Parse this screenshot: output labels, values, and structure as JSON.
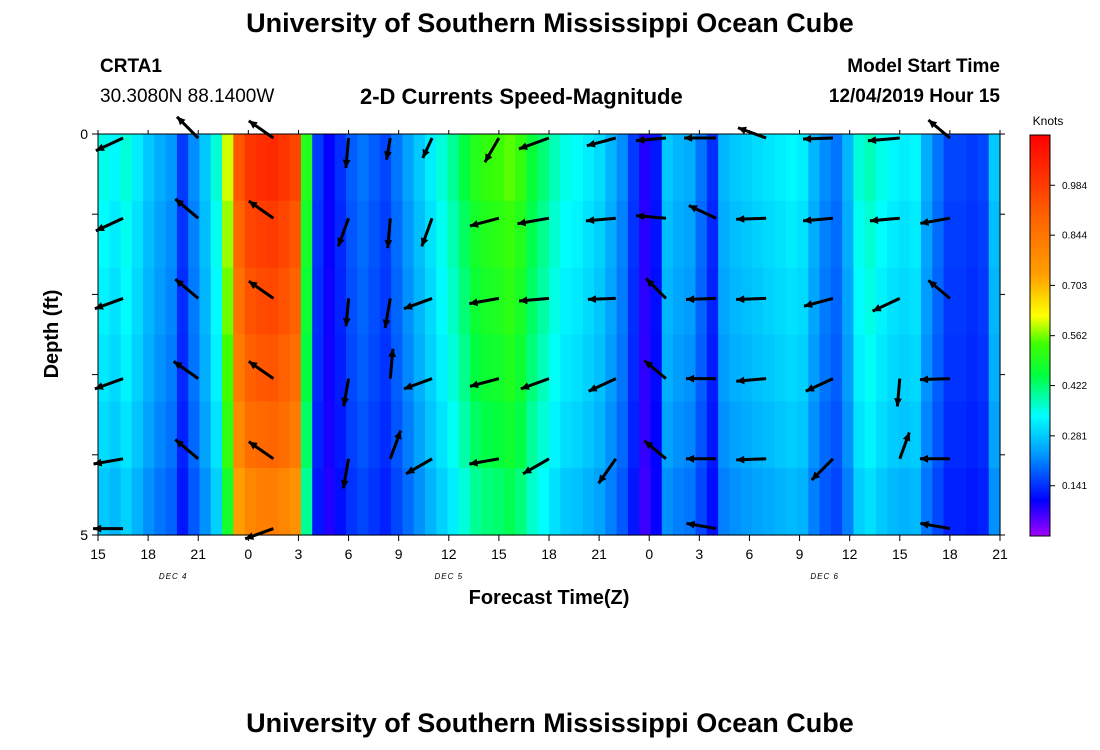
{
  "header": {
    "title": "University of Southern Mississippi Ocean Cube",
    "station": "CRTA1",
    "coords": "30.3080N 88.1400W",
    "subtitle": "2-D Currents Speed-Magnitude",
    "model_start_label": "Model Start Time",
    "model_start_value": "12/04/2019 Hour 15"
  },
  "footer": {
    "title": "University of Southern Mississippi Ocean Cube"
  },
  "colorbar": {
    "units": "Knots",
    "ticks": [
      "0.984",
      "0.844",
      "0.703",
      "0.562",
      "0.422",
      "0.281",
      "0.141"
    ]
  },
  "chart_data": {
    "type": "heatmap",
    "title": "2-D Currents Speed-Magnitude",
    "xlabel": "Forecast Time(Z)",
    "ylabel": "Depth (ft)",
    "x_tick_labels": [
      "15",
      "18",
      "21",
      "0",
      "3",
      "6",
      "9",
      "12",
      "15",
      "18",
      "21",
      "0",
      "3",
      "6",
      "9",
      "12",
      "15",
      "18",
      "21"
    ],
    "date_labels": [
      {
        "text": "DEC 4",
        "at_hour_offset": 4.5
      },
      {
        "text": "DEC 5",
        "at_hour_offset": 21
      },
      {
        "text": "DEC 6",
        "at_hour_offset": 43.5
      }
    ],
    "y_tick_labels": [
      "0",
      "5"
    ],
    "ylim": [
      0,
      5
    ],
    "x_range_hours": [
      0,
      54
    ],
    "value_range_knots": [
      0,
      1.125
    ],
    "column_speeds_knots": [
      0.35,
      0.33,
      0.36,
      0.32,
      0.28,
      0.25,
      0.23,
      0.15,
      0.22,
      0.28,
      0.36,
      0.6,
      0.92,
      1.0,
      1.02,
      1.03,
      1.0,
      0.96,
      0.5,
      0.15,
      0.1,
      0.14,
      0.18,
      0.2,
      0.18,
      0.16,
      0.2,
      0.24,
      0.28,
      0.32,
      0.36,
      0.4,
      0.45,
      0.5,
      0.52,
      0.53,
      0.55,
      0.52,
      0.46,
      0.42,
      0.38,
      0.35,
      0.34,
      0.32,
      0.3,
      0.26,
      0.22,
      0.15,
      0.08,
      0.12,
      0.28,
      0.26,
      0.25,
      0.2,
      0.14,
      0.26,
      0.28,
      0.29,
      0.3,
      0.31,
      0.32,
      0.33,
      0.32,
      0.26,
      0.22,
      0.2,
      0.26,
      0.36,
      0.38,
      0.35,
      0.33,
      0.32,
      0.33,
      0.25,
      0.2,
      0.16,
      0.16,
      0.15,
      0.16,
      0.28
    ],
    "depth_row_factors": [
      1.0,
      0.96,
      0.93,
      0.9,
      0.86,
      0.8
    ],
    "vectors": {
      "x_hours": [
        1.5,
        6,
        10.5,
        15,
        17.5,
        20,
        24,
        27,
        31,
        34,
        37,
        40,
        44,
        48,
        51
      ],
      "rows_ft": [
        0.05,
        1.05,
        2.05,
        3.05,
        4.05,
        4.92
      ],
      "angles_deg": [
        [
          155,
          -135,
          -145,
          95,
          100,
          115,
          120,
          160,
          165,
          175,
          180,
          -160,
          178,
          175,
          -140
        ],
        [
          155,
          -140,
          -145,
          110,
          95,
          110,
          165,
          170,
          175,
          -175,
          -155,
          178,
          175,
          175,
          170
        ],
        [
          160,
          -140,
          -145,
          95,
          100,
          160,
          170,
          175,
          178,
          -135,
          178,
          178,
          165,
          155,
          -140
        ],
        [
          160,
          -145,
          -145,
          100,
          -85,
          160,
          165,
          160,
          155,
          -140,
          180,
          175,
          155,
          95,
          178
        ],
        [
          170,
          -140,
          -145,
          100,
          -70,
          150,
          170,
          150,
          125,
          -140,
          180,
          178,
          135,
          -70,
          180
        ],
        [
          180,
          0,
          160,
          0,
          0,
          0,
          0,
          0,
          0,
          0,
          -170,
          0,
          0,
          0,
          -170
        ]
      ],
      "lengths_px": [
        [
          30,
          30,
          30,
          30,
          22,
          22,
          28,
          32,
          30,
          30,
          32,
          30,
          30,
          32,
          28
        ],
        [
          30,
          30,
          30,
          30,
          30,
          30,
          30,
          32,
          30,
          30,
          30,
          30,
          30,
          30,
          30
        ],
        [
          30,
          30,
          30,
          28,
          30,
          30,
          30,
          30,
          28,
          28,
          30,
          30,
          30,
          30,
          28
        ],
        [
          30,
          30,
          30,
          28,
          30,
          30,
          30,
          30,
          30,
          28,
          30,
          30,
          30,
          28,
          30
        ],
        [
          30,
          30,
          30,
          30,
          30,
          30,
          30,
          30,
          30,
          28,
          30,
          30,
          30,
          28,
          30
        ],
        [
          30,
          0,
          30,
          0,
          0,
          0,
          0,
          0,
          0,
          0,
          30,
          0,
          0,
          0,
          30
        ]
      ]
    }
  }
}
